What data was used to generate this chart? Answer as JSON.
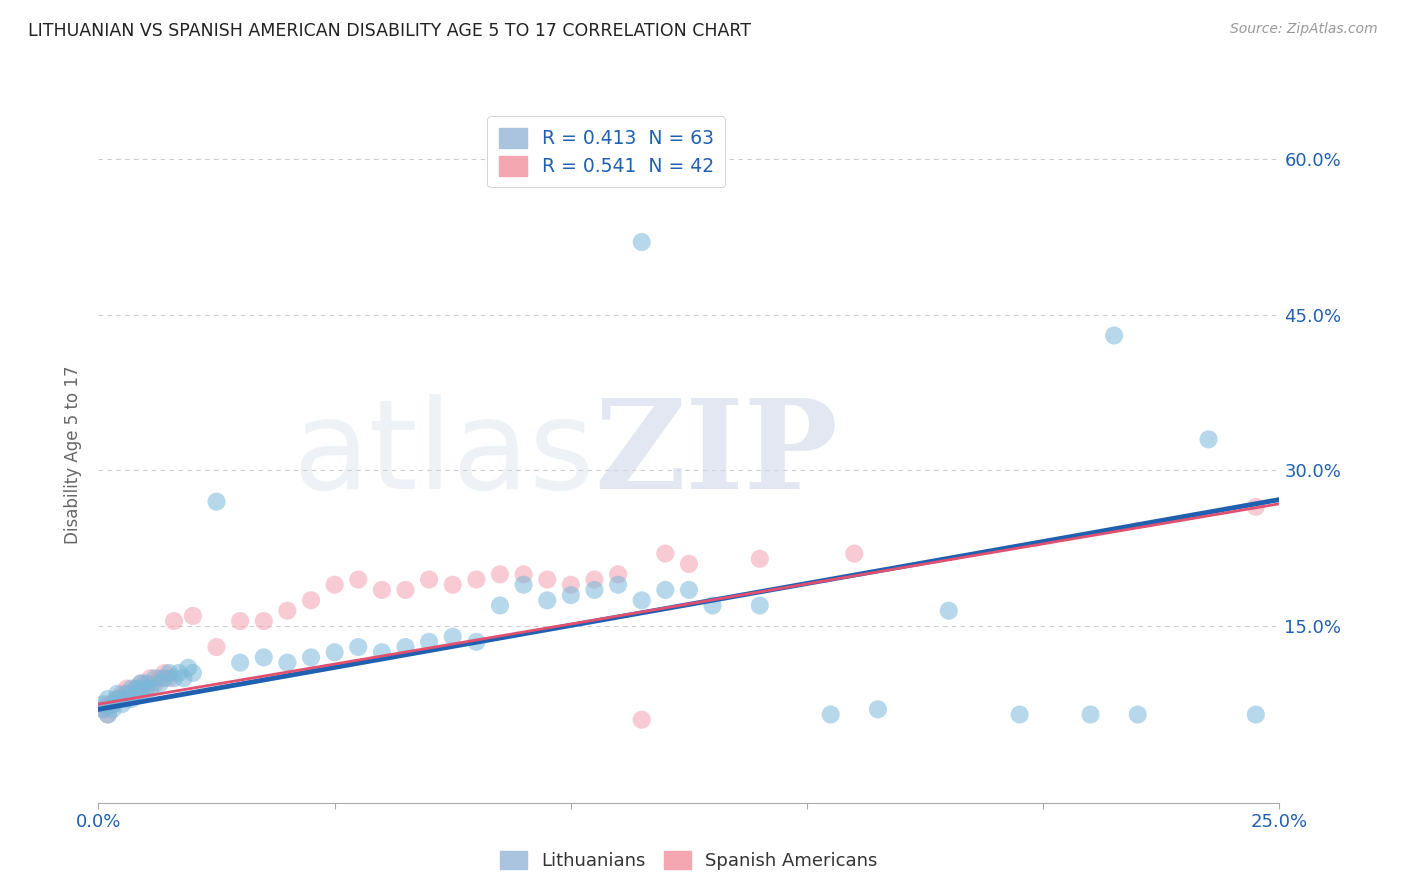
{
  "title": "LITHUANIAN VS SPANISH AMERICAN DISABILITY AGE 5 TO 17 CORRELATION CHART",
  "source": "Source: ZipAtlas.com",
  "ylabel": "Disability Age 5 to 17",
  "xmin": 0.0,
  "xmax": 0.25,
  "ymin": -0.02,
  "ymax": 0.65,
  "watermark_top": "ZIP",
  "watermark_bot": "atlas",
  "legend_entries": [
    {
      "label": "R = 0.413  N = 63",
      "color": "#aac4e0"
    },
    {
      "label": "R = 0.541  N = 42",
      "color": "#f4a7b0"
    }
  ],
  "legend_bottom": [
    "Lithuanians",
    "Spanish Americans"
  ],
  "blue_color": "#7ab8d9",
  "pink_color": "#f4a0b0",
  "blue_line_color": "#2060b0",
  "pink_line_color": "#e05070",
  "blue_scatter": [
    [
      0.001,
      0.07
    ],
    [
      0.001,
      0.075
    ],
    [
      0.002,
      0.065
    ],
    [
      0.002,
      0.08
    ],
    [
      0.003,
      0.07
    ],
    [
      0.003,
      0.075
    ],
    [
      0.004,
      0.08
    ],
    [
      0.004,
      0.085
    ],
    [
      0.005,
      0.075
    ],
    [
      0.005,
      0.08
    ],
    [
      0.006,
      0.08
    ],
    [
      0.006,
      0.085
    ],
    [
      0.007,
      0.08
    ],
    [
      0.007,
      0.09
    ],
    [
      0.008,
      0.085
    ],
    [
      0.008,
      0.09
    ],
    [
      0.009,
      0.085
    ],
    [
      0.009,
      0.095
    ],
    [
      0.01,
      0.09
    ],
    [
      0.01,
      0.095
    ],
    [
      0.011,
      0.09
    ],
    [
      0.012,
      0.1
    ],
    [
      0.013,
      0.095
    ],
    [
      0.014,
      0.1
    ],
    [
      0.015,
      0.105
    ],
    [
      0.016,
      0.1
    ],
    [
      0.017,
      0.105
    ],
    [
      0.018,
      0.1
    ],
    [
      0.019,
      0.11
    ],
    [
      0.02,
      0.105
    ],
    [
      0.025,
      0.27
    ],
    [
      0.03,
      0.115
    ],
    [
      0.035,
      0.12
    ],
    [
      0.04,
      0.115
    ],
    [
      0.045,
      0.12
    ],
    [
      0.05,
      0.125
    ],
    [
      0.055,
      0.13
    ],
    [
      0.06,
      0.125
    ],
    [
      0.065,
      0.13
    ],
    [
      0.07,
      0.135
    ],
    [
      0.075,
      0.14
    ],
    [
      0.08,
      0.135
    ],
    [
      0.085,
      0.17
    ],
    [
      0.09,
      0.19
    ],
    [
      0.095,
      0.175
    ],
    [
      0.1,
      0.18
    ],
    [
      0.105,
      0.185
    ],
    [
      0.11,
      0.19
    ],
    [
      0.115,
      0.175
    ],
    [
      0.12,
      0.185
    ],
    [
      0.125,
      0.185
    ],
    [
      0.115,
      0.52
    ],
    [
      0.13,
      0.17
    ],
    [
      0.14,
      0.17
    ],
    [
      0.155,
      0.065
    ],
    [
      0.165,
      0.07
    ],
    [
      0.18,
      0.165
    ],
    [
      0.195,
      0.065
    ],
    [
      0.21,
      0.065
    ],
    [
      0.22,
      0.065
    ],
    [
      0.215,
      0.43
    ],
    [
      0.235,
      0.33
    ],
    [
      0.245,
      0.065
    ]
  ],
  "pink_scatter": [
    [
      0.001,
      0.07
    ],
    [
      0.002,
      0.065
    ],
    [
      0.002,
      0.075
    ],
    [
      0.003,
      0.075
    ],
    [
      0.004,
      0.08
    ],
    [
      0.005,
      0.085
    ],
    [
      0.006,
      0.09
    ],
    [
      0.007,
      0.085
    ],
    [
      0.008,
      0.09
    ],
    [
      0.009,
      0.095
    ],
    [
      0.01,
      0.09
    ],
    [
      0.011,
      0.1
    ],
    [
      0.012,
      0.095
    ],
    [
      0.013,
      0.1
    ],
    [
      0.014,
      0.105
    ],
    [
      0.015,
      0.1
    ],
    [
      0.016,
      0.155
    ],
    [
      0.02,
      0.16
    ],
    [
      0.025,
      0.13
    ],
    [
      0.03,
      0.155
    ],
    [
      0.035,
      0.155
    ],
    [
      0.04,
      0.165
    ],
    [
      0.045,
      0.175
    ],
    [
      0.05,
      0.19
    ],
    [
      0.055,
      0.195
    ],
    [
      0.06,
      0.185
    ],
    [
      0.065,
      0.185
    ],
    [
      0.07,
      0.195
    ],
    [
      0.075,
      0.19
    ],
    [
      0.08,
      0.195
    ],
    [
      0.085,
      0.2
    ],
    [
      0.09,
      0.2
    ],
    [
      0.095,
      0.195
    ],
    [
      0.1,
      0.19
    ],
    [
      0.105,
      0.195
    ],
    [
      0.11,
      0.2
    ],
    [
      0.115,
      0.06
    ],
    [
      0.12,
      0.22
    ],
    [
      0.125,
      0.21
    ],
    [
      0.14,
      0.215
    ],
    [
      0.16,
      0.22
    ],
    [
      0.245,
      0.265
    ]
  ],
  "blue_line": [
    [
      0.0,
      0.07
    ],
    [
      0.25,
      0.272
    ]
  ],
  "pink_line": [
    [
      0.0,
      0.075
    ],
    [
      0.25,
      0.268
    ]
  ],
  "ytick_positions": [
    0.0,
    0.15,
    0.3,
    0.45,
    0.6
  ],
  "ytick_labels": [
    "",
    "15.0%",
    "30.0%",
    "45.0%",
    "60.0%"
  ],
  "xtick_positions": [
    0.0,
    0.05,
    0.1,
    0.15,
    0.2,
    0.25
  ],
  "xtick_labels": [
    "0.0%",
    "",
    "",
    "",
    "",
    "25.0%"
  ],
  "grid_color": "#cccccc",
  "bg_color": "#ffffff",
  "text_color_blue": "#2060b0",
  "label_color": "#666666",
  "title_color": "#222222"
}
